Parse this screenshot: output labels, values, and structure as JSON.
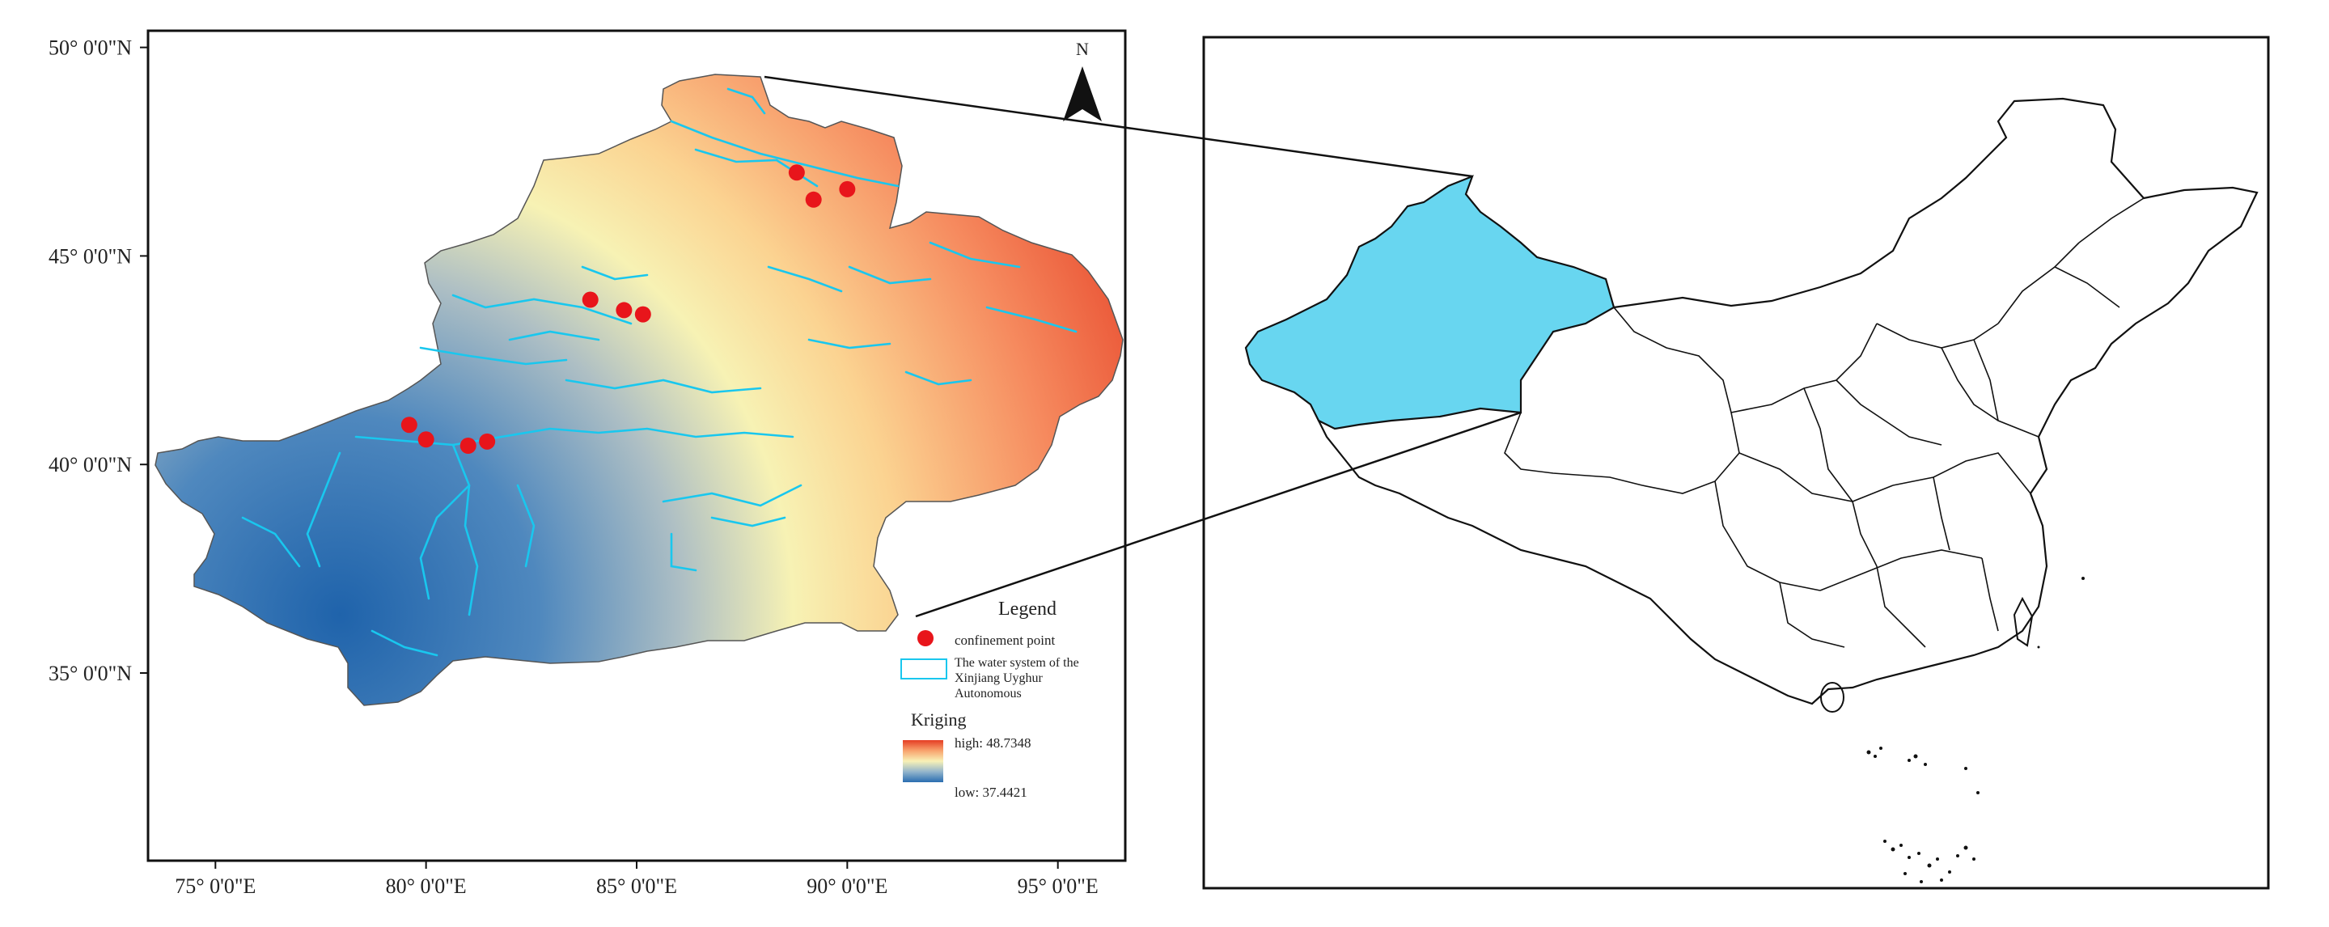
{
  "left_map": {
    "lat_ticks": [
      {
        "lat": 50,
        "label": "50°  0'0\"N"
      },
      {
        "lat": 45,
        "label": "45°  0'0\"N"
      },
      {
        "lat": 40,
        "label": "40°  0'0\"N"
      },
      {
        "lat": 35,
        "label": "35°  0'0\"N"
      }
    ],
    "lon_ticks": [
      {
        "lon": 75,
        "label": "75°  0'0\"E"
      },
      {
        "lon": 80,
        "label": "80°  0'0\"E"
      },
      {
        "lon": 85,
        "label": "85°  0'0\"E"
      },
      {
        "lon": 90,
        "label": "90°  0'0\"E"
      },
      {
        "lon": 95,
        "label": "95°  0'0\"E"
      }
    ],
    "lon_range": [
      73.4,
      96.6
    ],
    "lat_range": [
      30.5,
      50.4
    ],
    "north_label": "N",
    "confinement_points": [
      {
        "lon": 88.8,
        "lat": 47.0
      },
      {
        "lon": 89.2,
        "lat": 46.35
      },
      {
        "lon": 90.0,
        "lat": 46.6
      },
      {
        "lon": 83.9,
        "lat": 43.95
      },
      {
        "lon": 84.7,
        "lat": 43.7
      },
      {
        "lon": 85.15,
        "lat": 43.6
      },
      {
        "lon": 79.6,
        "lat": 40.95
      },
      {
        "lon": 80.0,
        "lat": 40.6
      },
      {
        "lon": 81.0,
        "lat": 40.45
      },
      {
        "lon": 81.45,
        "lat": 40.55
      }
    ],
    "legend": {
      "title": "Legend",
      "point_label": "confinement point",
      "water_label_lines": [
        "The water system of the",
        "Xinjiang Uyghur",
        "Autonomous"
      ],
      "kriging_title": "Kriging",
      "high_label": "high: 48.7348",
      "low_label": "low: 37.4421"
    },
    "colors": {
      "high": "#e8412a",
      "mid": "#fbf4b6",
      "low": "#2c6fb0",
      "water": "#19c7ee",
      "point": "#e8151b"
    }
  },
  "right_map": {
    "highlight_color": "#68d6f0"
  }
}
